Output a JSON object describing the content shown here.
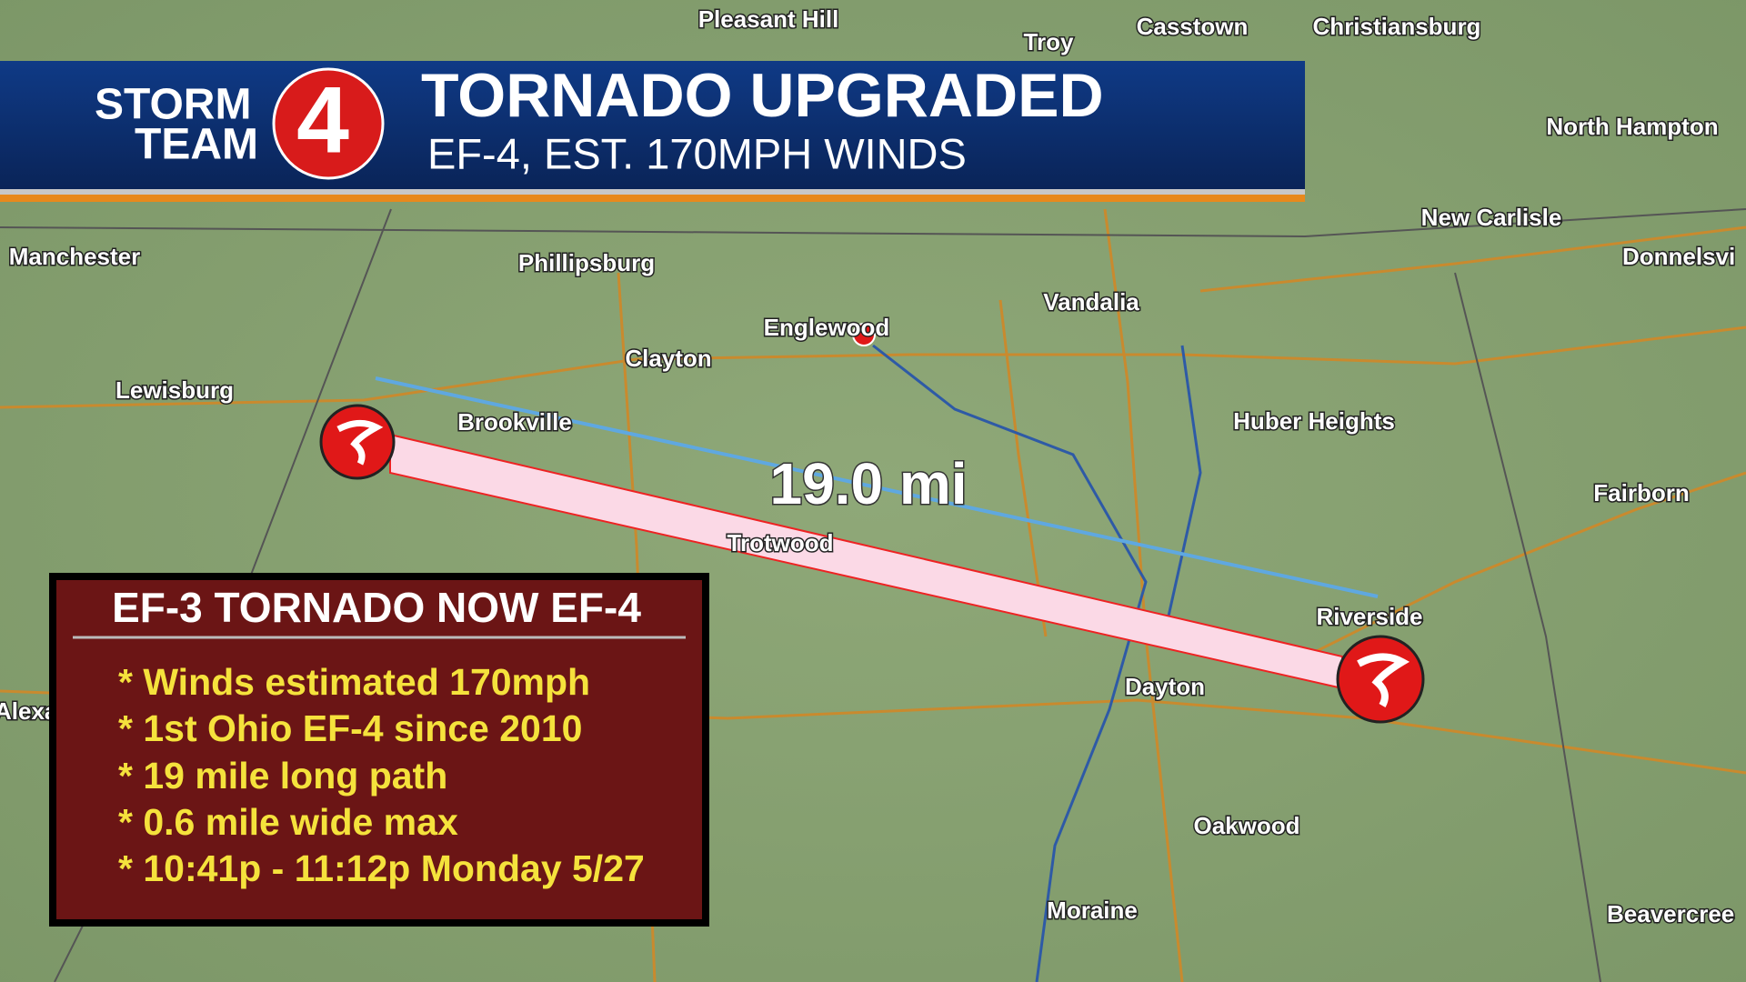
{
  "header": {
    "logo_line1": "STORM",
    "logo_line2": "TEAM",
    "logo_number": "4",
    "title": "TORNADO UPGRADED",
    "subtitle": "EF-4, EST. 170MPH WINDS"
  },
  "map": {
    "places": [
      "Pleasant Hill",
      "Troy",
      "Casstown",
      "Christiansburg",
      "North Hampton",
      "New Carlisle",
      "Donnelsvi",
      "Manchester",
      "Phillipsburg",
      "Vandalia",
      "Englewood",
      "Clayton",
      "Lewisburg",
      "Brookville",
      "Huber Heights",
      "Fairborn",
      "Trotwood",
      "Riverside",
      "Dayton",
      "Oakwood",
      "Moraine",
      "Beavercree",
      "Alexa"
    ],
    "distance": "19.0 mi"
  },
  "info_box": {
    "title": "EF-3 TORNADO NOW EF-4",
    "items": [
      "* Winds estimated 170mph",
      "*  1st Ohio EF-4 since 2010",
      "*  19 mile long path",
      "*  0.6 mile wide max",
      "*  10:41p - 11:12p Monday 5/27"
    ]
  }
}
